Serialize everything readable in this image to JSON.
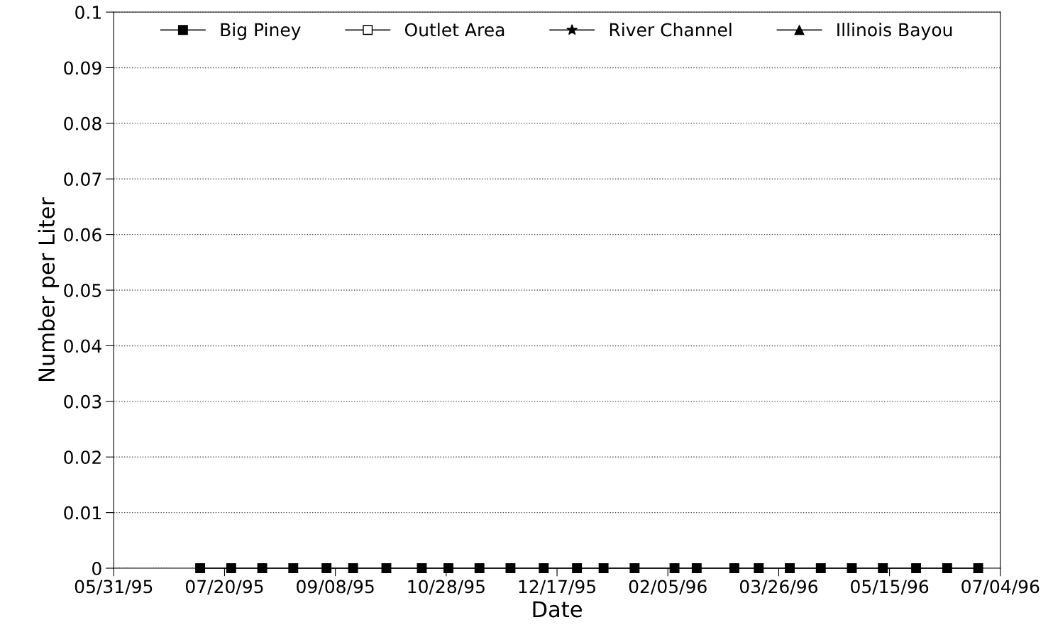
{
  "chart_data": {
    "type": "line",
    "xlabel": "Date",
    "ylabel": "Number per Liter",
    "x": [
      "1995-07-09",
      "1995-07-23",
      "1995-08-06",
      "1995-08-20",
      "1995-09-04",
      "1995-09-16",
      "1995-10-01",
      "1995-10-17",
      "1995-10-29",
      "1995-11-12",
      "1995-11-26",
      "1995-12-11",
      "1995-12-26",
      "1996-01-07",
      "1996-01-21",
      "1996-02-08",
      "1996-02-18",
      "1996-03-06",
      "1996-03-17",
      "1996-03-31",
      "1996-04-14",
      "1996-04-28",
      "1996-05-12",
      "1996-05-27",
      "1996-06-10",
      "1996-06-24"
    ],
    "series": [
      {
        "name": "Big Piney",
        "color": "#000000",
        "marker": "square",
        "values": [
          0,
          0,
          0,
          0,
          0,
          0,
          0,
          0,
          0,
          0,
          0,
          0,
          0,
          0,
          0,
          0,
          0,
          0,
          0,
          0,
          0,
          0,
          0,
          0,
          0,
          0
        ]
      },
      {
        "name": "Outlet Area",
        "color": "#000000",
        "marker": "square_open",
        "values": [
          null,
          null,
          null,
          null,
          null,
          null,
          null,
          null,
          null,
          null,
          null,
          null,
          null,
          null,
          null,
          null,
          null,
          null,
          null,
          null,
          null,
          null,
          null,
          null,
          null,
          null
        ]
      },
      {
        "name": "River Channel",
        "color": "#000000",
        "marker": "star",
        "values": [
          null,
          null,
          null,
          null,
          null,
          null,
          null,
          null,
          null,
          null,
          null,
          null,
          null,
          null,
          null,
          null,
          null,
          null,
          null,
          null,
          null,
          null,
          null,
          null,
          null,
          null
        ]
      },
      {
        "name": "Illinois Bayou",
        "color": "#000000",
        "marker": "triangle",
        "values": [
          null,
          null,
          null,
          null,
          null,
          null,
          null,
          null,
          null,
          null,
          null,
          null,
          null,
          null,
          null,
          null,
          null,
          null,
          null,
          null,
          null,
          null,
          null,
          null,
          null,
          null
        ]
      }
    ],
    "xlim": [
      "1995-05-31",
      "1996-07-04"
    ],
    "xticks": [
      {
        "value": "1995-05-31",
        "label": "05/31/95"
      },
      {
        "value": "1995-07-20",
        "label": "07/20/95"
      },
      {
        "value": "1995-09-08",
        "label": "09/08/95"
      },
      {
        "value": "1995-10-28",
        "label": "10/28/95"
      },
      {
        "value": "1995-12-17",
        "label": "12/17/95"
      },
      {
        "value": "1996-02-05",
        "label": "02/05/96"
      },
      {
        "value": "1996-03-26",
        "label": "03/26/96"
      },
      {
        "value": "1996-05-15",
        "label": "05/15/96"
      },
      {
        "value": "1996-07-04",
        "label": "07/04/96"
      }
    ],
    "ylim": [
      0,
      0.1
    ],
    "yticks": [
      0,
      0.01,
      0.02,
      0.03,
      0.04,
      0.05,
      0.06,
      0.07,
      0.08,
      0.09,
      0.1
    ],
    "grid": "y",
    "legend": "top",
    "line_style": "solid"
  }
}
